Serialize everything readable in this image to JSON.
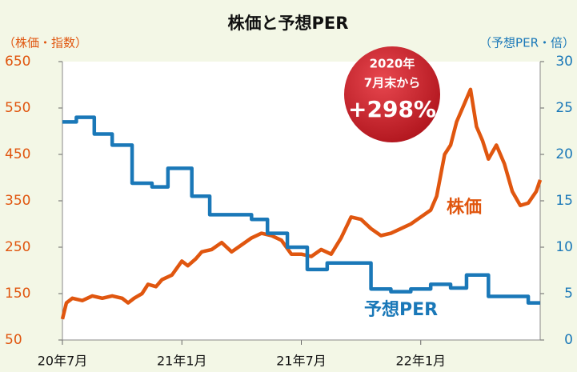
{
  "chart_data": {
    "type": "line",
    "title": "株価と予想PER",
    "y_label": "（株価・指数）",
    "y2_label": "（予想PER・倍）",
    "annotation": [
      "2020年",
      "7月末から",
      "+298%"
    ],
    "xlim": [
      0,
      24
    ],
    "xticks": [
      {
        "value": 0,
        "label": "20年7月"
      },
      {
        "value": 6,
        "label": "21年1月"
      },
      {
        "value": 12,
        "label": "21年7月"
      },
      {
        "value": 18,
        "label": "22年1月"
      }
    ],
    "ylim": [
      50,
      650
    ],
    "yticks": [
      50,
      150,
      250,
      350,
      450,
      550,
      650
    ],
    "y2lim": [
      0,
      30
    ],
    "y2ticks": [
      0,
      5,
      10,
      15,
      20,
      25,
      30
    ],
    "series": [
      {
        "name": "株価",
        "color": "#e0560f",
        "axis": "y",
        "x": [
          0,
          0.2,
          0.5,
          1,
          1.5,
          2,
          2.5,
          3,
          3.3,
          3.6,
          4,
          4.3,
          4.7,
          5,
          5.5,
          6,
          6.3,
          6.7,
          7,
          7.5,
          8,
          8.5,
          9,
          9.5,
          10,
          10.5,
          11,
          11.5,
          12,
          12.5,
          13,
          13.5,
          14,
          14.5,
          15,
          15.5,
          16,
          16.5,
          17,
          17.5,
          18,
          18.5,
          18.8,
          19.2,
          19.5,
          19.8,
          20.2,
          20.5,
          20.8,
          21.1,
          21.4,
          21.8,
          22.2,
          22.6,
          23,
          23.4,
          23.8,
          24
        ],
        "values": [
          95,
          130,
          140,
          135,
          145,
          140,
          145,
          140,
          130,
          140,
          150,
          170,
          165,
          180,
          190,
          220,
          210,
          225,
          240,
          245,
          260,
          240,
          255,
          270,
          280,
          275,
          265,
          235,
          235,
          230,
          245,
          235,
          270,
          315,
          310,
          290,
          275,
          280,
          290,
          300,
          315,
          330,
          360,
          450,
          470,
          520,
          560,
          590,
          510,
          480,
          440,
          470,
          430,
          370,
          340,
          345,
          370,
          395
        ]
      },
      {
        "name": "予想PER",
        "color": "#1a78b8",
        "axis": "y2",
        "drawstyle": "steps-post",
        "x": [
          0,
          0.7,
          1.6,
          2.5,
          3.5,
          4.5,
          5.3,
          6.5,
          7.4,
          9.5,
          10.3,
          11.3,
          12.3,
          13.3,
          15.5,
          16.5,
          17.5,
          18.5,
          19.5,
          20.3,
          21.4,
          23.4
        ],
        "values": [
          23.5,
          24,
          22.2,
          21,
          16.9,
          16.5,
          18.5,
          15.5,
          13.5,
          13,
          11.5,
          10,
          7.6,
          8.3,
          5.5,
          5.2,
          5.5,
          6,
          5.6,
          7,
          4.7,
          4
        ]
      }
    ]
  }
}
